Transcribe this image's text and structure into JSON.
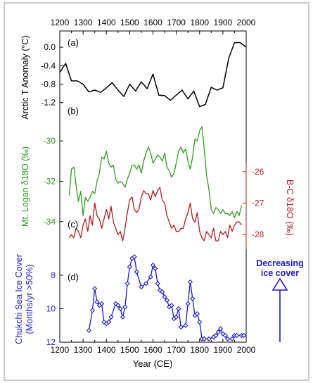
{
  "chart_data": {
    "type": "line",
    "x_axis": {
      "label": "Year (CE)",
      "range": [
        1200,
        2000
      ],
      "ticks": [
        1200,
        1300,
        1400,
        1500,
        1600,
        1700,
        1800,
        1900,
        2000
      ],
      "tick_labels": [
        "1200",
        "1300",
        "1400",
        "1500",
        "1600",
        "1700",
        "1800",
        "1900",
        "2000"
      ],
      "top_axis_duplicated": true
    },
    "panels": [
      {
        "id": "a",
        "panel_label": "(a)",
        "ylabel": "Arctic T Anomaly (°C)",
        "axis_side": "left",
        "color": "#000000",
        "ylim": [
          -1.45,
          0.2
        ],
        "ticks": [
          0.0,
          -0.4,
          -0.8,
          -1.2
        ],
        "tick_labels": [
          "0.0",
          "-0.4",
          "-0.8",
          "-1.2"
        ],
        "x": [
          1200,
          1225,
          1250,
          1275,
          1300,
          1325,
          1350,
          1375,
          1400,
          1425,
          1450,
          1475,
          1500,
          1525,
          1550,
          1575,
          1600,
          1625,
          1650,
          1675,
          1700,
          1725,
          1750,
          1775,
          1800,
          1825,
          1850,
          1875,
          1900,
          1925,
          1950,
          1975,
          2000
        ],
        "y": [
          -0.55,
          -0.35,
          -0.73,
          -0.73,
          -0.8,
          -0.97,
          -0.93,
          -0.98,
          -0.88,
          -0.77,
          -0.93,
          -1.07,
          -0.8,
          -0.95,
          -0.75,
          -0.9,
          -0.58,
          -1.04,
          -1.05,
          -1.15,
          -1.04,
          -0.93,
          -1.12,
          -0.95,
          -1.29,
          -1.24,
          -0.87,
          -0.93,
          -0.88,
          -0.24,
          0.1,
          0.1,
          0.0
        ]
      },
      {
        "id": "b",
        "panel_label": "(b)",
        "ylabel": "Mt. Logan δ18O (‰)",
        "axis_side": "left",
        "color": "#2e9c1e",
        "ylim": [
          -34.6,
          -28.6
        ],
        "ticks": [
          -30,
          -32,
          -34
        ],
        "tick_labels": [
          "-30",
          "-32",
          "-34"
        ],
        "x": [
          1240,
          1250,
          1260,
          1270,
          1280,
          1290,
          1300,
          1310,
          1320,
          1330,
          1340,
          1350,
          1360,
          1370,
          1380,
          1390,
          1400,
          1410,
          1420,
          1430,
          1440,
          1450,
          1460,
          1470,
          1480,
          1490,
          1500,
          1510,
          1520,
          1530,
          1540,
          1550,
          1560,
          1570,
          1580,
          1590,
          1600,
          1610,
          1620,
          1630,
          1640,
          1650,
          1660,
          1670,
          1680,
          1690,
          1700,
          1710,
          1720,
          1730,
          1740,
          1750,
          1760,
          1770,
          1780,
          1790,
          1800,
          1810,
          1820,
          1830,
          1840,
          1850,
          1860,
          1870,
          1880,
          1890,
          1900,
          1910,
          1920,
          1930,
          1940,
          1950,
          1960,
          1970,
          1980
        ],
        "y": [
          -32.7,
          -31.4,
          -31.3,
          -32.2,
          -33.0,
          -32.5,
          -33.7,
          -32.8,
          -33.0,
          -32.8,
          -32.5,
          -32.6,
          -32.0,
          -31.6,
          -30.8,
          -30.9,
          -30.5,
          -31.1,
          -31.3,
          -31.2,
          -31.9,
          -32.1,
          -32.0,
          -32.1,
          -32.3,
          -31.9,
          -31.6,
          -31.2,
          -31.2,
          -31.4,
          -31.2,
          -31.6,
          -31.0,
          -30.6,
          -30.3,
          -30.6,
          -31.1,
          -30.9,
          -30.7,
          -30.8,
          -31.0,
          -30.6,
          -31.3,
          -31.5,
          -31.8,
          -31.6,
          -31.1,
          -30.5,
          -30.3,
          -30.6,
          -30.4,
          -31.0,
          -31.4,
          -30.8,
          -29.9,
          -30.0,
          -29.5,
          -29.3,
          -30.4,
          -31.7,
          -32.4,
          -33.4,
          -33.6,
          -33.3,
          -33.4,
          -33.6,
          -33.4,
          -33.6,
          -33.6,
          -33.7,
          -33.5,
          -33.8,
          -33.5,
          -33.7,
          -33.2
        ]
      },
      {
        "id": "c",
        "panel_label": "(c)",
        "ylabel": "B-C δ18O (‰)",
        "axis_side": "right",
        "color": "#b31b1b",
        "ylim": [
          -28.6,
          -25.6
        ],
        "ticks": [
          -26,
          -27,
          -28
        ],
        "tick_labels": [
          "-26",
          "-27",
          "-28"
        ],
        "x": [
          1240,
          1250,
          1260,
          1270,
          1280,
          1290,
          1300,
          1310,
          1320,
          1330,
          1340,
          1350,
          1360,
          1370,
          1380,
          1390,
          1400,
          1410,
          1420,
          1430,
          1440,
          1450,
          1460,
          1470,
          1480,
          1490,
          1500,
          1510,
          1520,
          1530,
          1540,
          1550,
          1560,
          1570,
          1580,
          1590,
          1600,
          1610,
          1620,
          1630,
          1640,
          1650,
          1660,
          1670,
          1680,
          1690,
          1700,
          1710,
          1720,
          1730,
          1740,
          1750,
          1760,
          1770,
          1780,
          1790,
          1800,
          1810,
          1820,
          1830,
          1840,
          1850,
          1860,
          1870,
          1880,
          1890,
          1900,
          1910,
          1920,
          1930,
          1940,
          1950,
          1960,
          1970,
          1980
        ],
        "y": [
          -28.1,
          -28.0,
          -28.1,
          -27.8,
          -27.9,
          -28.1,
          -27.7,
          -27.5,
          -27.9,
          -27.4,
          -27.7,
          -27.0,
          -27.4,
          -27.5,
          -27.8,
          -27.5,
          -27.2,
          -27.5,
          -27.1,
          -27.6,
          -27.8,
          -28.0,
          -27.9,
          -28.2,
          -27.8,
          -27.3,
          -26.9,
          -26.8,
          -27.2,
          -27.3,
          -27.2,
          -26.8,
          -26.6,
          -26.7,
          -26.7,
          -26.9,
          -26.6,
          -26.8,
          -26.6,
          -26.5,
          -26.9,
          -27.0,
          -27.4,
          -27.6,
          -27.8,
          -27.7,
          -27.9,
          -27.9,
          -27.8,
          -27.8,
          -27.5,
          -27.3,
          -27.0,
          -27.5,
          -27.6,
          -27.3,
          -27.9,
          -28.1,
          -28.2,
          -27.9,
          -28.0,
          -28.1,
          -27.8,
          -28.2,
          -28.2,
          -27.9,
          -28.0,
          -27.9,
          -28.1,
          -27.7,
          -27.9,
          -27.7,
          -27.6,
          -27.6,
          -27.7
        ]
      },
      {
        "id": "d",
        "panel_label": "(d)",
        "ylabel": "Chukchi Sea Ice Cover (Months/yr >50%)",
        "axis_side": "left",
        "color": "#1a1ad1",
        "ylim": [
          12.0,
          6.7
        ],
        "inverted": true,
        "ticks": [
          8,
          10,
          12
        ],
        "tick_labels": [
          "8",
          "10",
          "12"
        ],
        "marker": "diamond",
        "x": [
          1325,
          1340,
          1350,
          1360,
          1370,
          1380,
          1390,
          1400,
          1410,
          1420,
          1440,
          1450,
          1460,
          1470,
          1480,
          1490,
          1500,
          1510,
          1520,
          1530,
          1550,
          1570,
          1590,
          1600,
          1610,
          1620,
          1630,
          1640,
          1650,
          1660,
          1670,
          1680,
          1690,
          1700,
          1710,
          1720,
          1740,
          1750,
          1760,
          1770,
          1780,
          1790,
          1800,
          1810,
          1820,
          1840,
          1860,
          1870,
          1880,
          1890,
          1900,
          1910,
          1920,
          1940,
          1950,
          1960,
          1980,
          1990
        ],
        "y": [
          11.3,
          10.1,
          8.8,
          9.6,
          9.8,
          9.7,
          10.8,
          10.9,
          10.8,
          10.5,
          9.7,
          9.8,
          10.0,
          10.5,
          9.9,
          8.5,
          7.5,
          7.0,
          6.9,
          7.8,
          8.7,
          8.5,
          8.1,
          7.4,
          7.6,
          8.5,
          8.9,
          9.0,
          9.3,
          9.5,
          9.9,
          9.8,
          10.6,
          10.5,
          10.0,
          11.1,
          11.0,
          9.7,
          8.4,
          9.4,
          10.4,
          10.3,
          10.8,
          11.8,
          11.8,
          11.8,
          11.7,
          11.6,
          11.4,
          11.2,
          11.5,
          11.6,
          11.8,
          11.8,
          11.6,
          11.6,
          11.6,
          11.6
        ]
      }
    ],
    "annotation": {
      "text_line1": "Decreasing",
      "text_line2": "ice cover",
      "color": "#1a1ad1"
    }
  }
}
